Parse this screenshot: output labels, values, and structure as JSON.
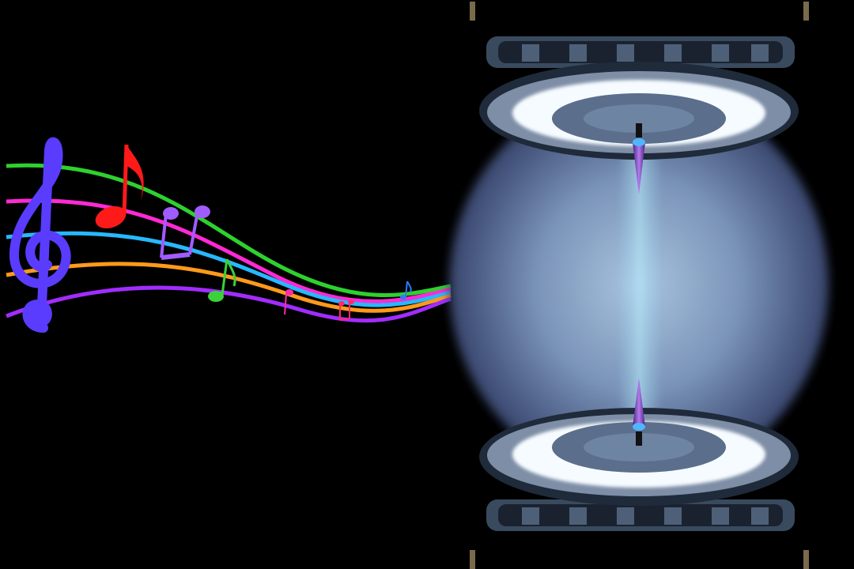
{
  "scene": {
    "background": "#000000",
    "left_element": "music-staff-with-notes",
    "right_element": "glowing-resonance-chamber"
  },
  "staff_colors": [
    "#2ed12e",
    "#ff2ad4",
    "#27b8ff",
    "#ff9a1a",
    "#a22cff"
  ],
  "note_colors": {
    "treble_clef": "#5a3cff",
    "eighth_note": "#ff1a1a",
    "beamed_notes": "#a15cff",
    "green_note": "#3ad13a",
    "small_notes": [
      "#ff2aa8",
      "#ff2a6a",
      "#2a7bff"
    ]
  },
  "chamber": {
    "glow_color": "#dfe9ff",
    "body_color": "#8aa4c8",
    "rim_color": "#2c3b4f",
    "electrode_color": "#8a3ccf"
  }
}
